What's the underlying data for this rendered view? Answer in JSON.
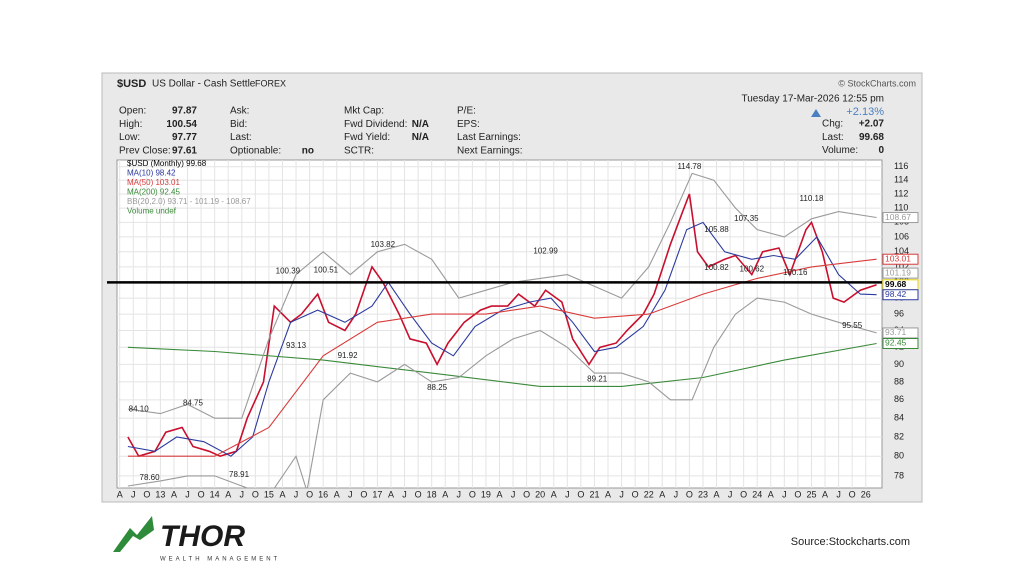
{
  "chart_data": {
    "type": "line",
    "log_scale": true,
    "grid": true,
    "title": "$USD",
    "subtitle": "US Dollar - Cash Settle",
    "exchange": "FOREX",
    "credit": "© StockCharts.com",
    "header": {
      "columns": [
        [
          {
            "label": "Open:",
            "value": "97.87"
          },
          {
            "label": "High:",
            "value": "100.54"
          },
          {
            "label": "Low:",
            "value": "97.77"
          },
          {
            "label": "Prev Close:",
            "value": "97.61"
          }
        ],
        [
          {
            "label": "Ask:"
          },
          {
            "label": "Bid:"
          },
          {
            "label": "Last:"
          },
          {
            "label": "Optionable:",
            "value": "no"
          }
        ],
        [
          {
            "label": "Mkt Cap:"
          },
          {
            "label": "Fwd Dividend:",
            "value": "N/A"
          },
          {
            "label": "Fwd Yield:",
            "value": "N/A"
          },
          {
            "label": "SCTR:"
          }
        ],
        [
          {
            "label": "P/E:"
          },
          {
            "label": "EPS:"
          },
          {
            "label": "Last Earnings:"
          },
          {
            "label": "Next Earnings:"
          }
        ]
      ],
      "date": "Tuesday  17-Mar-2026  12:55 pm",
      "change_pct": "+2.13%",
      "quote": [
        {
          "label": "Chg:",
          "value": "+2.07"
        },
        {
          "label": "Last:",
          "value": "99.68"
        },
        {
          "label": "Volume:",
          "value": "0"
        }
      ]
    },
    "legend_extra": "Volume undef",
    "xlim": [
      2012.2,
      2026.3
    ],
    "ylim": [
      76.8,
      117
    ],
    "yticks": [
      78,
      80,
      82,
      84,
      86,
      88,
      90,
      92,
      94,
      96,
      98,
      100,
      102,
      104,
      106,
      108,
      110,
      112,
      114,
      116
    ],
    "xticks": [
      {
        "value": 2012.25,
        "label": "A"
      },
      {
        "value": 2012.5,
        "label": "J"
      },
      {
        "value": 2012.75,
        "label": "O"
      },
      {
        "value": 2013,
        "label": "13"
      },
      {
        "value": 2013.25,
        "label": "A"
      },
      {
        "value": 2013.5,
        "label": "J"
      },
      {
        "value": 2013.75,
        "label": "O"
      },
      {
        "value": 2014,
        "label": "14"
      },
      {
        "value": 2014.25,
        "label": "A"
      },
      {
        "value": 2014.5,
        "label": "J"
      },
      {
        "value": 2014.75,
        "label": "O"
      },
      {
        "value": 2015,
        "label": "15"
      },
      {
        "value": 2015.25,
        "label": "A"
      },
      {
        "value": 2015.5,
        "label": "J"
      },
      {
        "value": 2015.75,
        "label": "O"
      },
      {
        "value": 2016,
        "label": "16"
      },
      {
        "value": 2016.25,
        "label": "A"
      },
      {
        "value": 2016.5,
        "label": "J"
      },
      {
        "value": 2016.75,
        "label": "O"
      },
      {
        "value": 2017,
        "label": "17"
      },
      {
        "value": 2017.25,
        "label": "A"
      },
      {
        "value": 2017.5,
        "label": "J"
      },
      {
        "value": 2017.75,
        "label": "O"
      },
      {
        "value": 2018,
        "label": "18"
      },
      {
        "value": 2018.25,
        "label": "A"
      },
      {
        "value": 2018.5,
        "label": "J"
      },
      {
        "value": 2018.75,
        "label": "O"
      },
      {
        "value": 2019,
        "label": "19"
      },
      {
        "value": 2019.25,
        "label": "A"
      },
      {
        "value": 2019.5,
        "label": "J"
      },
      {
        "value": 2019.75,
        "label": "O"
      },
      {
        "value": 2020,
        "label": "20"
      },
      {
        "value": 2020.25,
        "label": "A"
      },
      {
        "value": 2020.5,
        "label": "J"
      },
      {
        "value": 2020.75,
        "label": "O"
      },
      {
        "value": 2021,
        "label": "21"
      },
      {
        "value": 2021.25,
        "label": "A"
      },
      {
        "value": 2021.5,
        "label": "J"
      },
      {
        "value": 2021.75,
        "label": "O"
      },
      {
        "value": 2022,
        "label": "22"
      },
      {
        "value": 2022.25,
        "label": "A"
      },
      {
        "value": 2022.5,
        "label": "J"
      },
      {
        "value": 2022.75,
        "label": "O"
      },
      {
        "value": 2023,
        "label": "23"
      },
      {
        "value": 2023.25,
        "label": "A"
      },
      {
        "value": 2023.5,
        "label": "J"
      },
      {
        "value": 2023.75,
        "label": "O"
      },
      {
        "value": 2024,
        "label": "24"
      },
      {
        "value": 2024.25,
        "label": "A"
      },
      {
        "value": 2024.5,
        "label": "J"
      },
      {
        "value": 2024.75,
        "label": "O"
      },
      {
        "value": 2025,
        "label": "25"
      },
      {
        "value": 2025.25,
        "label": "A"
      },
      {
        "value": 2025.5,
        "label": "J"
      },
      {
        "value": 2025.75,
        "label": "O"
      },
      {
        "value": 2026,
        "label": "26"
      }
    ],
    "series": [
      {
        "name": "$USD (Monthly) 99.68",
        "color": "#c8102e",
        "x": [
          2012.4,
          2012.6,
          2012.9,
          2013.1,
          2013.4,
          2013.6,
          2013.9,
          2014.1,
          2014.4,
          2014.6,
          2014.9,
          2015.1,
          2015.4,
          2015.6,
          2015.9,
          2016.1,
          2016.4,
          2016.6,
          2016.9,
          2017.1,
          2017.4,
          2017.6,
          2017.9,
          2018.1,
          2018.3,
          2018.6,
          2018.9,
          2019.1,
          2019.4,
          2019.6,
          2019.9,
          2020.1,
          2020.4,
          2020.6,
          2020.9,
          2021.1,
          2021.4,
          2021.6,
          2021.9,
          2022.1,
          2022.4,
          2022.6,
          2022.75,
          2022.9,
          2023.1,
          2023.4,
          2023.6,
          2023.9,
          2024.1,
          2024.4,
          2024.6,
          2024.9,
          2025.0,
          2025.2,
          2025.4,
          2025.6,
          2025.9,
          2026.2
        ],
        "values": [
          82,
          80,
          80.5,
          82.5,
          83,
          81,
          80.5,
          80,
          80.5,
          84,
          88,
          97,
          95,
          96,
          98.5,
          95,
          94,
          96,
          102,
          100,
          96,
          93,
          92.5,
          90,
          92.5,
          95,
          96.5,
          97,
          97,
          98.5,
          97,
          99,
          97.5,
          93,
          90,
          92,
          92.5,
          94,
          96,
          98.5,
          105,
          109,
          112,
          104,
          102,
          103,
          103.5,
          101,
          104,
          104.5,
          101,
          107,
          108,
          104,
          98,
          97.5,
          99,
          99.68
        ]
      },
      {
        "name": "MA(10) 98.42",
        "color": "#2b3a9e",
        "x": [
          2012.4,
          2012.9,
          2013.3,
          2013.8,
          2014.3,
          2014.7,
          2015.0,
          2015.4,
          2015.9,
          2016.4,
          2016.9,
          2017.2,
          2017.6,
          2018.0,
          2018.4,
          2018.8,
          2019.3,
          2019.8,
          2020.2,
          2020.6,
          2021.0,
          2021.4,
          2021.9,
          2022.3,
          2022.7,
          2023.0,
          2023.4,
          2023.9,
          2024.3,
          2024.7,
          2025.1,
          2025.5,
          2025.9,
          2026.2
        ],
        "values": [
          81,
          80.5,
          82,
          81.5,
          80,
          82,
          88,
          95,
          96.5,
          95,
          97,
          100,
          96,
          92.5,
          91,
          94.5,
          96.5,
          97.5,
          98,
          95,
          91.5,
          92,
          94.5,
          99,
          107,
          108,
          104,
          103,
          103.5,
          103,
          106,
          101,
          98.5,
          98.42
        ]
      },
      {
        "name": "MA(50) 103.01",
        "color": "#d93b3b",
        "x": [
          2012.4,
          2014,
          2015,
          2016,
          2017,
          2018,
          2019,
          2020,
          2021,
          2022,
          2023,
          2024,
          2025,
          2026.2
        ],
        "values": [
          80,
          80,
          83,
          91,
          95,
          96,
          96,
          97,
          95.5,
          96,
          98.5,
          100.5,
          102,
          103.01
        ]
      },
      {
        "name": "MA(200) 92.45",
        "color": "#3a8a3a",
        "x": [
          2012.4,
          2014,
          2016,
          2018,
          2020,
          2021.5,
          2023,
          2024.5,
          2026.2
        ],
        "values": [
          92,
          91.5,
          90.5,
          89,
          87.5,
          87.5,
          88.5,
          90.5,
          92.45
        ]
      },
      {
        "name": "BB(20,2.0) 93.71 - 101.19 - 108.67",
        "color": "#9a9a9a",
        "x": [
          2012.4,
          2013,
          2013.5,
          2014,
          2014.5,
          2015,
          2015.5,
          2016,
          2016.5,
          2017,
          2017.5,
          2018,
          2018.5,
          2019,
          2019.5,
          2020,
          2020.5,
          2021,
          2021.5,
          2022,
          2022.4,
          2022.8,
          2023.2,
          2023.6,
          2024,
          2024.5,
          2025,
          2025.5,
          2026.2
        ],
        "values": [
          85,
          84.5,
          85.5,
          84,
          84,
          93,
          101,
          104,
          101,
          104,
          105,
          103,
          98,
          99,
          100,
          100.5,
          101,
          99.5,
          98,
          102,
          108,
          115,
          114,
          110,
          107,
          106,
          108.5,
          109.5,
          108.67
        ]
      },
      {
        "name": "",
        "color": "#9a9a9a",
        "axis_role": "lower band",
        "x": [
          2012.4,
          2013,
          2013.5,
          2014,
          2014.5,
          2015,
          2015.5,
          2015.7,
          2016,
          2016.5,
          2017,
          2017.5,
          2018,
          2018.5,
          2019,
          2019.5,
          2020,
          2020.5,
          2021,
          2021.5,
          2022,
          2022.4,
          2022.8,
          2023.2,
          2023.6,
          2024,
          2024.5,
          2025,
          2025.5,
          2026.2
        ],
        "values": [
          77,
          77.5,
          78,
          78,
          77,
          76,
          80,
          76.5,
          86,
          89,
          88,
          90,
          88,
          88.5,
          91,
          93,
          94,
          92,
          89,
          89,
          88,
          86,
          86,
          92,
          96,
          98,
          97.5,
          96,
          95,
          93.71
        ]
      }
    ],
    "hline": 100,
    "annotations": [
      {
        "x": 2012.6,
        "y": 84.1,
        "text": "84.10"
      },
      {
        "x": 2012.8,
        "y": 78.6,
        "text": "78.60"
      },
      {
        "x": 2013.6,
        "y": 84.75,
        "text": "84.75"
      },
      {
        "x": 2014.45,
        "y": 78.91,
        "text": "78.91"
      },
      {
        "x": 2015.35,
        "y": 100.39,
        "text": "100.39"
      },
      {
        "x": 2015.5,
        "y": 93.13,
        "text": "93.13"
      },
      {
        "x": 2016.05,
        "y": 100.51,
        "text": "100.51"
      },
      {
        "x": 2016.45,
        "y": 91.92,
        "text": "91.92"
      },
      {
        "x": 2017.1,
        "y": 103.82,
        "text": "103.82"
      },
      {
        "x": 2018.1,
        "y": 88.25,
        "text": "88.25"
      },
      {
        "x": 2020.1,
        "y": 102.99,
        "text": "102.99"
      },
      {
        "x": 2021.05,
        "y": 89.21,
        "text": "89.21"
      },
      {
        "x": 2022.75,
        "y": 114.78,
        "text": "114.78"
      },
      {
        "x": 2023.25,
        "y": 105.88,
        "text": "105.88"
      },
      {
        "x": 2023.8,
        "y": 107.35,
        "text": "107.35"
      },
      {
        "x": 2023.25,
        "y": 100.82,
        "text": "100.82"
      },
      {
        "x": 2023.9,
        "y": 100.62,
        "text": "100.62"
      },
      {
        "x": 2025.0,
        "y": 110.18,
        "text": "110.18"
      },
      {
        "x": 2024.7,
        "y": 100.16,
        "text": "100.16"
      },
      {
        "x": 2025.75,
        "y": 95.55,
        "text": "95.55"
      }
    ],
    "right_labels": [
      {
        "value": 108.67,
        "color": "#9a9a9a"
      },
      {
        "value": 103.01,
        "color": "#d93b3b"
      },
      {
        "value": 101.19,
        "color": "#9a9a9a"
      },
      {
        "value": 99.68,
        "color": "#e8d800"
      },
      {
        "value": 98.42,
        "color": "#2b3a9e"
      },
      {
        "value": 93.71,
        "color": "#9a9a9a"
      },
      {
        "value": 92.45,
        "color": "#3a8a3a"
      }
    ]
  },
  "footer": {
    "brand": "THOR",
    "tagline": "WEALTH MANAGEMENT",
    "source": "Source:Stockcharts.com"
  }
}
